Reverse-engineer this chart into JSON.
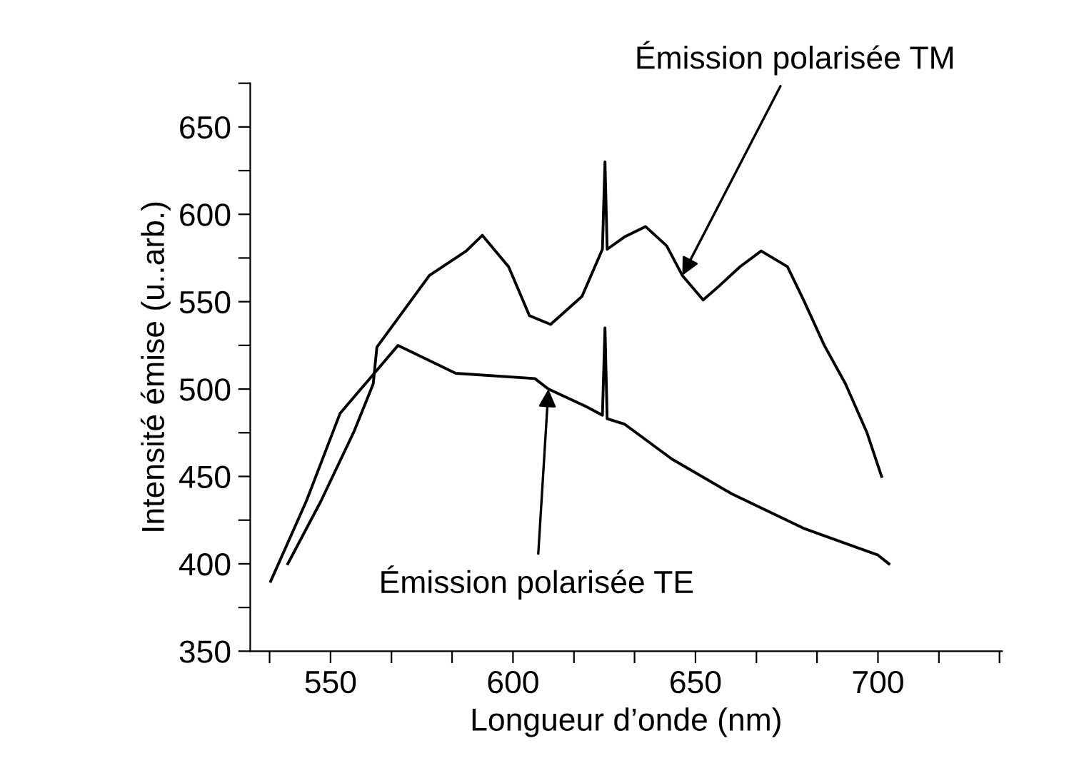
{
  "chart_data": {
    "type": "line",
    "xlabel": "Longueur d’onde (nm)",
    "ylabel": "Intensité émise (u..arb.)",
    "series": [
      {
        "color": "#000000",
        "x": [
          538.3,
          547.4,
          556.5,
          561.7,
          562.7,
          577.1,
          587.2,
          591.6,
          598.8,
          604.5,
          610.3,
          618.9,
          624.5,
          625.2,
          625.8,
          630.5,
          636.3,
          642.1,
          646.4,
          652.1,
          656.5,
          662.2,
          668,
          675.2,
          679.6,
          685.3,
          691.1,
          697,
          701
        ],
        "values": [
          400,
          436,
          476,
          503,
          524,
          565,
          579,
          588,
          570,
          542,
          537,
          553,
          580,
          630,
          580,
          587,
          593,
          582,
          565,
          551,
          559,
          570,
          579,
          570,
          551,
          525,
          503,
          475,
          450
        ]
      },
      {
        "color": "#000000",
        "x": [
          533.6,
          543.4,
          552.6,
          568.5,
          584.3,
          606,
          609.7,
          620,
          624.5,
          625.2,
          625.8,
          630.5,
          643.5,
          660,
          680,
          700,
          703
        ],
        "values": [
          390,
          436,
          486,
          525,
          509,
          506,
          500,
          490,
          485,
          535,
          483,
          480,
          460,
          440,
          420,
          405,
          400
        ]
      }
    ],
    "annotations": [
      {
        "text": "Émission polarisée TM",
        "x": 646.4,
        "y": 565
      },
      {
        "text": "Émission polarisée TE",
        "x": 609.7,
        "y": 500
      }
    ],
    "xlim": [
      528,
      734
    ],
    "ylim": [
      350,
      675
    ],
    "xticks": [
      {
        "value": 533.3,
        "label": null
      },
      550,
      {
        "value": 566.7,
        "label": null
      },
      {
        "value": 583.3,
        "label": null
      },
      600,
      {
        "value": 616.7,
        "label": null
      },
      {
        "value": 633.3,
        "label": null
      },
      650,
      {
        "value": 666.7,
        "label": null
      },
      {
        "value": 683.3,
        "label": null
      },
      700,
      {
        "value": 716.7,
        "label": null
      },
      {
        "value": 733.3,
        "label": null
      }
    ],
    "yticks": [
      350,
      {
        "value": 375,
        "label": null
      },
      400,
      {
        "value": 425,
        "label": null
      },
      450,
      {
        "value": 475,
        "label": null
      },
      500,
      {
        "value": 525,
        "label": null
      },
      550,
      {
        "value": 575,
        "label": null
      },
      600,
      {
        "value": 625,
        "label": null
      },
      650,
      {
        "value": 675,
        "label": null
      }
    ],
    "grid": false,
    "legend": false,
    "marker": "none",
    "line_style": "solid"
  }
}
